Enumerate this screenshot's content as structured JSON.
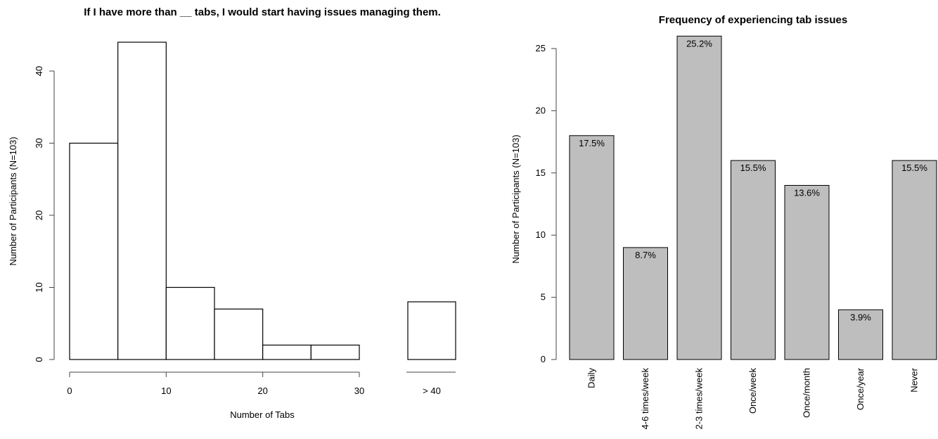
{
  "chart_data": [
    {
      "type": "bar",
      "title": "If I have more than __ tabs, I would start having issues managing them.",
      "xlabel": "Number of Tabs",
      "ylabel": "Number of Participants (N=103)",
      "ylim": [
        0,
        44
      ],
      "yticks": [
        0,
        10,
        20,
        30,
        40
      ],
      "xticks": [
        0,
        10,
        20,
        30
      ],
      "bins": [
        {
          "from": 0,
          "to": 5,
          "value": 30
        },
        {
          "from": 5,
          "to": 10,
          "value": 44
        },
        {
          "from": 10,
          "to": 15,
          "value": 10
        },
        {
          "from": 15,
          "to": 20,
          "value": 7
        },
        {
          "from": 20,
          "to": 25,
          "value": 2
        },
        {
          "from": 25,
          "to": 30,
          "value": 2
        }
      ],
      "overflow_bin": {
        "label": "> 40",
        "value": 8
      },
      "fill": "#ffffff",
      "stroke": "#000000"
    },
    {
      "type": "bar",
      "title": "Frequency of experiencing tab issues",
      "xlabel": "",
      "ylabel": "Number of Participants (N=103)",
      "ylim": [
        0,
        26
      ],
      "yticks": [
        0,
        5,
        10,
        15,
        20,
        25
      ],
      "categories": [
        "Daily",
        "4-6 times/week",
        "2-3 times/week",
        "Once/week",
        "Once/month",
        "Once/year",
        "Never"
      ],
      "values": [
        18,
        9,
        26,
        16,
        14,
        4,
        16
      ],
      "data_labels": [
        "17.5%",
        "8.7%",
        "25.2%",
        "15.5%",
        "13.6%",
        "3.9%",
        "15.5%"
      ],
      "fill": "#bebebe",
      "stroke": "#000000"
    }
  ]
}
